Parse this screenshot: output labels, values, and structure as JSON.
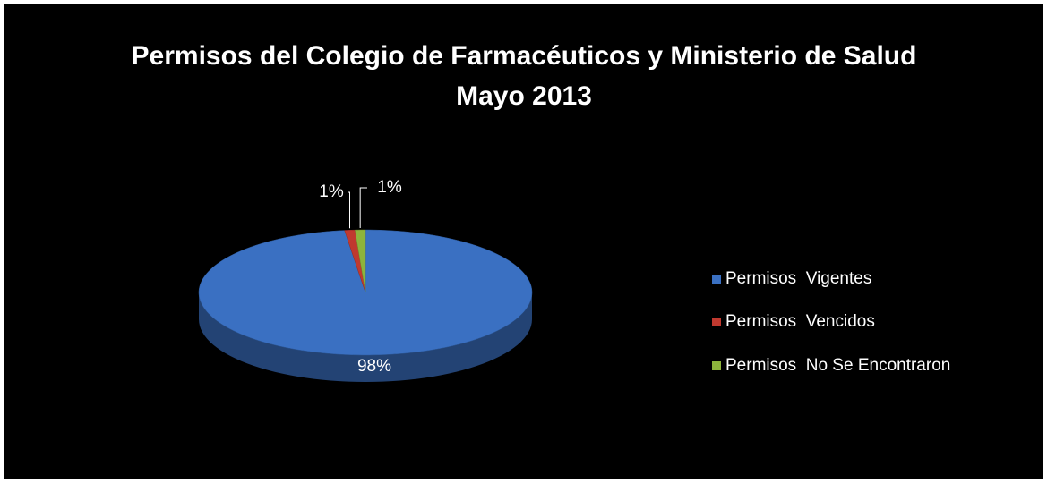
{
  "chart_data": {
    "type": "pie",
    "title": "Permisos del Colegio de Farmacéuticos y Ministerio de Salud",
    "subtitle": "Mayo 2013",
    "categories": [
      "Permisos  Vigentes",
      "Permisos  Vencidos",
      "Permisos  No Se Encontraron"
    ],
    "values": [
      98,
      1,
      1
    ],
    "value_labels": [
      "98%",
      "1%",
      "1%"
    ],
    "colors": [
      "#3a70c2",
      "#c0392f",
      "#8db43c"
    ],
    "legend": "right"
  }
}
